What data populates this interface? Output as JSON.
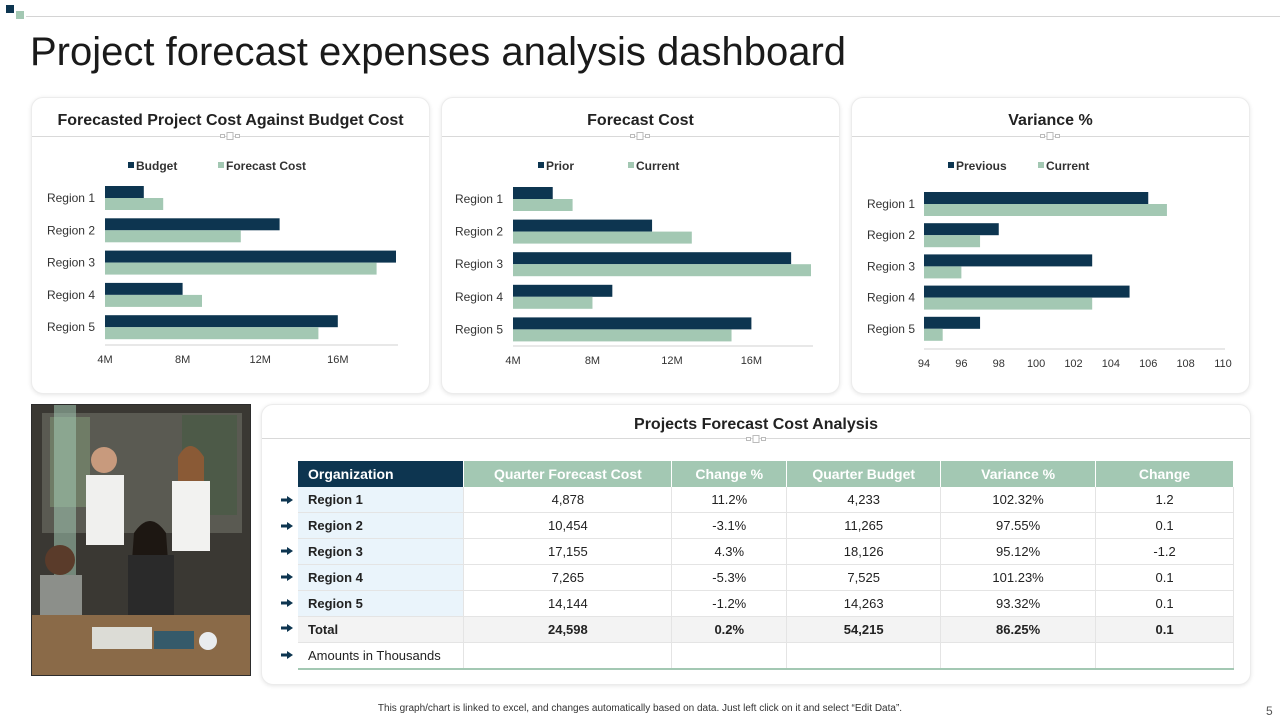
{
  "page": {
    "title": "Project forecast expenses analysis dashboard",
    "footer": "This graph/chart is linked to excel, and changes automatically based on data. Just left click on it and select “Edit Data”.",
    "page_number": "5"
  },
  "colors": {
    "dark": "#0d3550",
    "light": "#a3c8b3",
    "row_highlight": "#eaf4fb"
  },
  "chart_data": [
    {
      "type": "bar",
      "orientation": "horizontal",
      "title": "Forecasted Project Cost Against Budget Cost",
      "categories": [
        "Region 1",
        "Region 2",
        "Region 3",
        "Region 4",
        "Region 5"
      ],
      "series": [
        {
          "name": "Budget",
          "values": [
            6,
            13,
            19,
            8,
            16
          ]
        },
        {
          "name": "Forecast Cost",
          "values": [
            7,
            11,
            18,
            9,
            15
          ]
        }
      ],
      "ticks": [
        4,
        8,
        12,
        16
      ],
      "tick_labels": [
        "4M",
        "8M",
        "12M",
        "16M"
      ],
      "xlim": [
        4,
        19
      ],
      "legend": "top"
    },
    {
      "type": "bar",
      "orientation": "horizontal",
      "title": "Forecast Cost",
      "categories": [
        "Region 1",
        "Region 2",
        "Region 3",
        "Region 4",
        "Region 5"
      ],
      "series": [
        {
          "name": "Prior",
          "values": [
            6,
            11,
            18,
            9,
            16
          ]
        },
        {
          "name": "Current",
          "values": [
            7,
            13,
            19,
            8,
            15
          ]
        }
      ],
      "ticks": [
        4,
        8,
        12,
        16
      ],
      "tick_labels": [
        "4M",
        "8M",
        "12M",
        "16M"
      ],
      "xlim": [
        4,
        19
      ],
      "legend": "top"
    },
    {
      "type": "bar",
      "orientation": "horizontal",
      "title": "Variance %",
      "categories": [
        "Region 1",
        "Region 2",
        "Region 3",
        "Region 4",
        "Region 5"
      ],
      "series": [
        {
          "name": "Previous",
          "values": [
            106,
            98,
            103,
            105,
            97
          ]
        },
        {
          "name": "Current",
          "values": [
            107,
            97,
            96,
            103,
            95
          ]
        }
      ],
      "ticks": [
        94,
        96,
        98,
        100,
        102,
        104,
        106,
        108,
        110
      ],
      "tick_labels": [
        "94",
        "96",
        "98",
        "100",
        "102",
        "104",
        "106",
        "108",
        "110"
      ],
      "xlim": [
        94,
        110
      ],
      "legend": "top"
    }
  ],
  "table": {
    "title": "Projects Forecast Cost Analysis",
    "headers": [
      "Organization",
      "Quarter Forecast Cost",
      "Change %",
      "Quarter Budget",
      "Variance %",
      "Change"
    ],
    "rows": [
      [
        "Region 1",
        "4,878",
        "11.2%",
        "4,233",
        "102.32%",
        "1.2"
      ],
      [
        "Region 2",
        "10,454",
        "-3.1%",
        "11,265",
        "97.55%",
        "0.1"
      ],
      [
        "Region 3",
        "17,155",
        "4.3%",
        "18,126",
        "95.12%",
        "-1.2"
      ],
      [
        "Region 4",
        "7,265",
        "-5.3%",
        "7,525",
        "101.23%",
        "0.1"
      ],
      [
        "Region 5",
        "14,144",
        "-1.2%",
        "14,263",
        "93.32%",
        "0.1"
      ]
    ],
    "total": [
      "Total",
      "24,598",
      "0.2%",
      "54,215",
      "86.25%",
      "0.1"
    ],
    "note": "Amounts in Thousands"
  }
}
